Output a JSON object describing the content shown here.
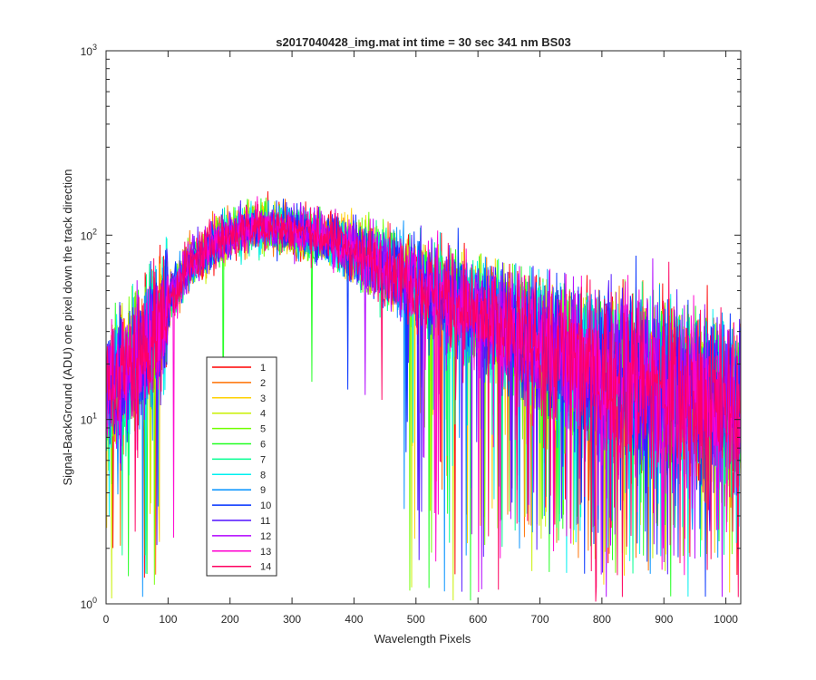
{
  "chart_data": {
    "type": "line",
    "title": "s2017040428_img.mat int time = 30 sec  341 nm BS03",
    "xlabel": "Wavelength Pixels",
    "ylabel": "Signal-BackGround (ADU) one pixel down the track direction",
    "xlim": [
      0,
      1024
    ],
    "ylim": [
      1,
      1000
    ],
    "yscale": "log",
    "grid": false,
    "legend_position": "lower-left",
    "x_ticks": [
      {
        "value": 0,
        "label": "0"
      },
      {
        "value": 100,
        "label": "100"
      },
      {
        "value": 200,
        "label": "200"
      },
      {
        "value": 300,
        "label": "300"
      },
      {
        "value": 400,
        "label": "400"
      },
      {
        "value": 500,
        "label": "500"
      },
      {
        "value": 600,
        "label": "600"
      },
      {
        "value": 700,
        "label": "700"
      },
      {
        "value": 800,
        "label": "800"
      },
      {
        "value": 900,
        "label": "900"
      },
      {
        "value": 1000,
        "label": "1000"
      }
    ],
    "y_ticks": [
      {
        "value": 1,
        "base": "10",
        "exp": "0"
      },
      {
        "value": 10,
        "base": "10",
        "exp": "1"
      },
      {
        "value": 100,
        "base": "10",
        "exp": "2"
      },
      {
        "value": 1000,
        "base": "10",
        "exp": "3"
      }
    ],
    "envelope": {
      "x": [
        0,
        25,
        50,
        75,
        100,
        125,
        150,
        175,
        200,
        225,
        250,
        275,
        300,
        325,
        350,
        375,
        400,
        450,
        500,
        550,
        600,
        650,
        700,
        750,
        800,
        850,
        900,
        950,
        1000,
        1024
      ],
      "y": [
        15,
        17,
        22,
        28,
        42,
        62,
        78,
        90,
        100,
        108,
        112,
        110,
        107,
        102,
        98,
        92,
        82,
        68,
        55,
        44,
        37,
        30,
        26,
        22,
        19,
        17,
        16,
        14,
        13,
        12
      ]
    },
    "series": [
      {
        "name": "1",
        "color": "#ff0000"
      },
      {
        "name": "2",
        "color": "#ff7000"
      },
      {
        "name": "3",
        "color": "#ffd000"
      },
      {
        "name": "4",
        "color": "#c8f000"
      },
      {
        "name": "5",
        "color": "#70ff00"
      },
      {
        "name": "6",
        "color": "#20ff20"
      },
      {
        "name": "7",
        "color": "#00ff90"
      },
      {
        "name": "8",
        "color": "#00f0f0"
      },
      {
        "name": "9",
        "color": "#0090ff"
      },
      {
        "name": "10",
        "color": "#0030ff"
      },
      {
        "name": "11",
        "color": "#5010ff"
      },
      {
        "name": "12",
        "color": "#b000ff"
      },
      {
        "name": "13",
        "color": "#ff00d0"
      },
      {
        "name": "14",
        "color": "#ff0060"
      }
    ]
  }
}
